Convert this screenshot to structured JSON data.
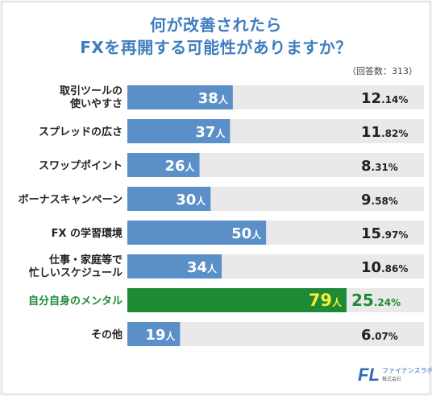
{
  "chart_data": {
    "type": "bar",
    "orientation": "horizontal",
    "title_lines": [
      "何が改善されたら",
      "FXを再開する可能性がありますか？"
    ],
    "note": "（回答数：313）",
    "count_unit": "人",
    "percent_unit": "%",
    "categories": [
      [
        "取引ツールの",
        "使いやすさ"
      ],
      [
        "スプレッドの広さ"
      ],
      [
        "スワップポイント"
      ],
      [
        "ボーナスキャンペーン"
      ],
      [
        "FX の学習環境"
      ],
      [
        "仕事・家庭等で",
        "忙しいスケジュール"
      ],
      [
        "自分自身のメンタル"
      ],
      [
        "その他"
      ]
    ],
    "values": [
      38,
      37,
      26,
      30,
      50,
      34,
      79,
      19
    ],
    "percents": [
      [
        "12",
        ".14"
      ],
      [
        "11",
        ".82"
      ],
      [
        "8",
        ".31"
      ],
      [
        "9",
        ".58"
      ],
      [
        "15",
        ".97"
      ],
      [
        "10",
        ".86"
      ],
      [
        "25",
        ".24"
      ],
      [
        "6",
        ".07"
      ]
    ],
    "highlight_index": 6,
    "xlim": [
      0,
      79
    ],
    "colors": {
      "bar": "#5b8fc7",
      "track": "#e9e9e9",
      "highlight_bar": "#1f8a36",
      "highlight_value": "#f7ee36",
      "highlight_label": "#1f8a36",
      "title": "#3e7dc0"
    }
  },
  "logo": {
    "mark": "FL",
    "name": "ファイナンスラボ",
    "company": "株式会社"
  }
}
